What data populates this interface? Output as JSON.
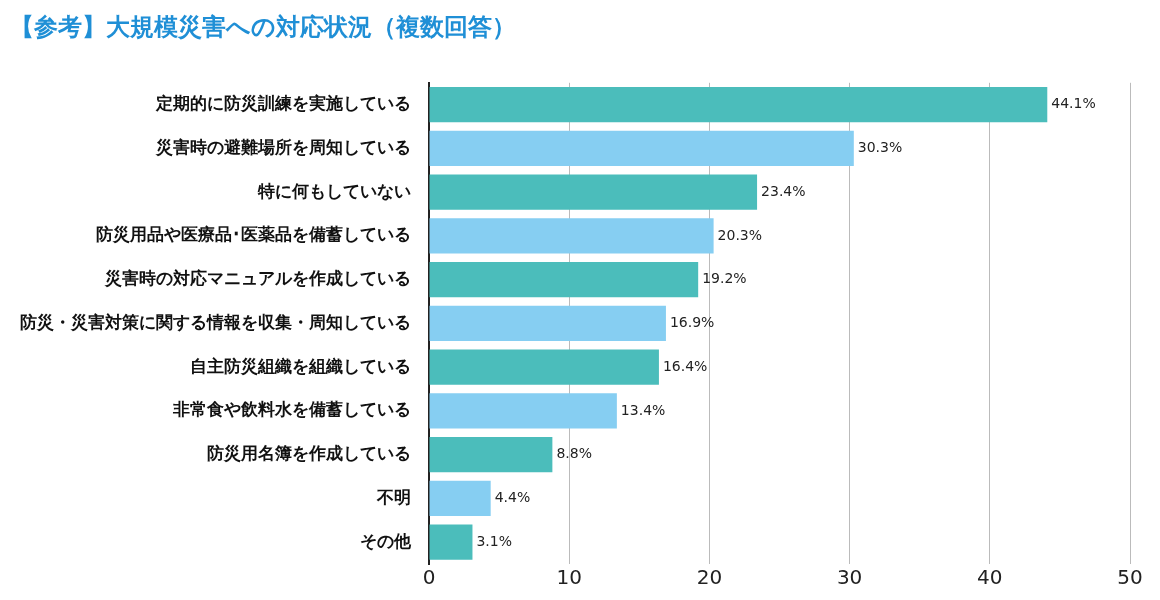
{
  "chart_data": {
    "type": "bar",
    "orientation": "horizontal",
    "title": "【参考】大規模災害への対応状況（複数回答）",
    "categories": [
      "定期的に防災訓練を実施している",
      "災害時の避難場所を周知している",
      "特に何もしていない",
      "防災用品や医療品･医薬品を備蓄している",
      "災害時の対応マニュアルを作成している",
      "防災・災害対策に関する情報を収集・周知している",
      "自主防災組織を組織している",
      "非常食や飲料水を備蓄している",
      "防災用名簿を作成している",
      "不明",
      "その他"
    ],
    "values": [
      44.1,
      30.3,
      23.4,
      20.3,
      19.2,
      16.9,
      16.4,
      13.4,
      8.8,
      4.4,
      3.1
    ],
    "value_labels": [
      "44.1%",
      "30.3%",
      "23.4%",
      "20.3%",
      "19.2%",
      "16.9%",
      "16.4%",
      "13.4%",
      "8.8%",
      "4.4%",
      "3.1%"
    ],
    "colors": [
      "#4bbdbb",
      "#86cef2",
      "#4bbdbb",
      "#86cef2",
      "#4bbdbb",
      "#86cef2",
      "#4bbdbb",
      "#86cef2",
      "#4bbdbb",
      "#86cef2",
      "#4bbdbb"
    ],
    "xlim": [
      0,
      50
    ],
    "xticks": [
      0,
      10,
      20,
      30,
      40,
      50
    ],
    "grid": true,
    "data_labels": true
  }
}
